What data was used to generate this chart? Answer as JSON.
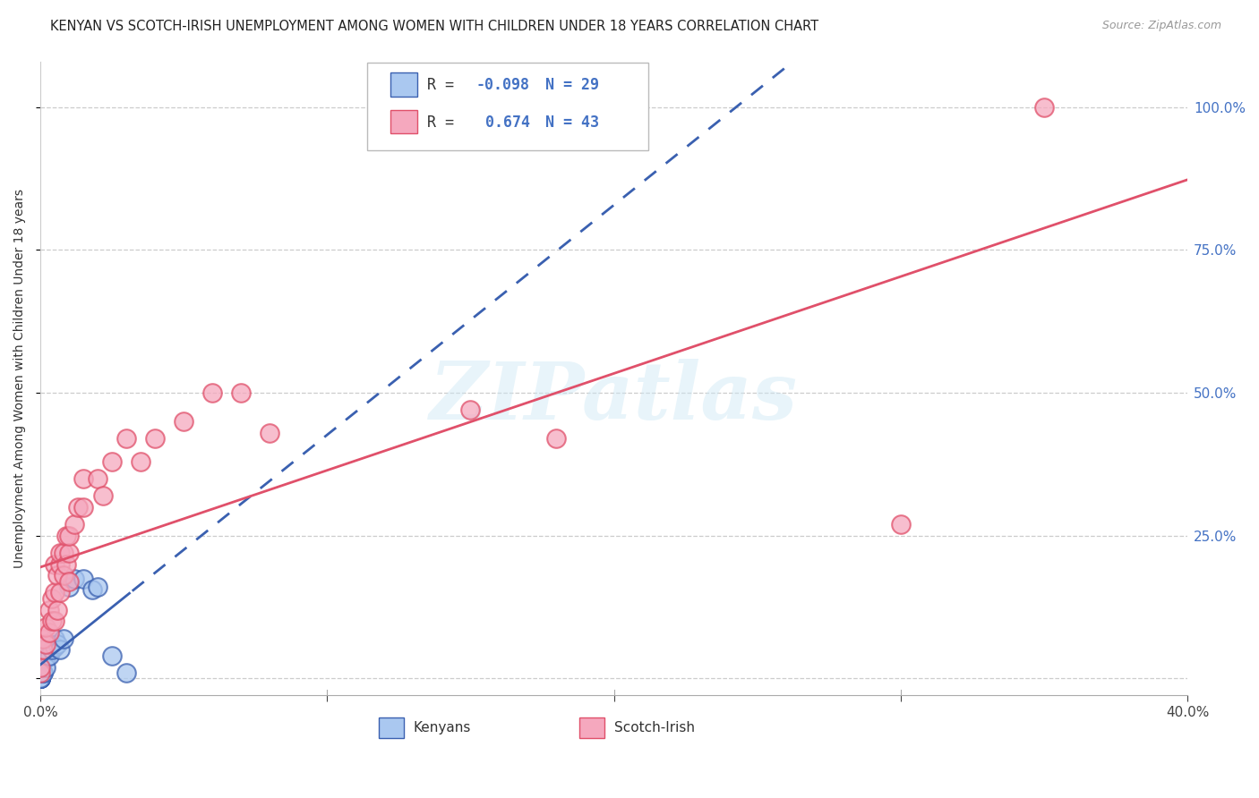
{
  "title": "KENYAN VS SCOTCH-IRISH UNEMPLOYMENT AMONG WOMEN WITH CHILDREN UNDER 18 YEARS CORRELATION CHART",
  "source": "Source: ZipAtlas.com",
  "ylabel": "Unemployment Among Women with Children Under 18 years",
  "legend_label1": "Kenyans",
  "legend_label2": "Scotch-Irish",
  "R_kenyan": -0.098,
  "N_kenyan": 29,
  "R_scotch": 0.674,
  "N_scotch": 43,
  "color_kenyan": "#aac8f0",
  "color_scotch": "#f5a8be",
  "line_color_kenyan": "#3a60b0",
  "line_color_scotch": "#e0506a",
  "watermark": "ZIPatlas",
  "kenyan_x": [
    0.0,
    0.0,
    0.0,
    0.0,
    0.0,
    0.0,
    0.0,
    0.0,
    0.0,
    0.0,
    0.001,
    0.001,
    0.002,
    0.002,
    0.003,
    0.003,
    0.004,
    0.005,
    0.005,
    0.006,
    0.007,
    0.008,
    0.01,
    0.012,
    0.015,
    0.018,
    0.02,
    0.025,
    0.03
  ],
  "kenyan_y": [
    0.0,
    0.0,
    0.0,
    0.0,
    0.0,
    0.0,
    0.0,
    0.0,
    0.0,
    0.0,
    0.01,
    0.01,
    0.035,
    0.02,
    0.06,
    0.04,
    0.05,
    0.07,
    0.055,
    0.06,
    0.05,
    0.07,
    0.16,
    0.175,
    0.175,
    0.155,
    0.16,
    0.04,
    0.01
  ],
  "scotch_x": [
    0.0,
    0.0,
    0.001,
    0.001,
    0.002,
    0.002,
    0.003,
    0.003,
    0.004,
    0.004,
    0.005,
    0.005,
    0.005,
    0.006,
    0.006,
    0.007,
    0.007,
    0.007,
    0.008,
    0.008,
    0.009,
    0.009,
    0.01,
    0.01,
    0.01,
    0.012,
    0.013,
    0.015,
    0.015,
    0.02,
    0.022,
    0.025,
    0.03,
    0.035,
    0.04,
    0.05,
    0.06,
    0.07,
    0.08,
    0.15,
    0.18,
    0.3,
    0.35
  ],
  "scotch_y": [
    0.01,
    0.02,
    0.05,
    0.07,
    0.06,
    0.09,
    0.08,
    0.12,
    0.1,
    0.14,
    0.1,
    0.15,
    0.2,
    0.12,
    0.18,
    0.15,
    0.2,
    0.22,
    0.18,
    0.22,
    0.2,
    0.25,
    0.17,
    0.22,
    0.25,
    0.27,
    0.3,
    0.3,
    0.35,
    0.35,
    0.32,
    0.38,
    0.42,
    0.38,
    0.42,
    0.45,
    0.5,
    0.5,
    0.43,
    0.47,
    0.42,
    0.27,
    1.0
  ],
  "xmin": 0.0,
  "xmax": 0.4,
  "ymin": -0.03,
  "ymax": 1.08
}
